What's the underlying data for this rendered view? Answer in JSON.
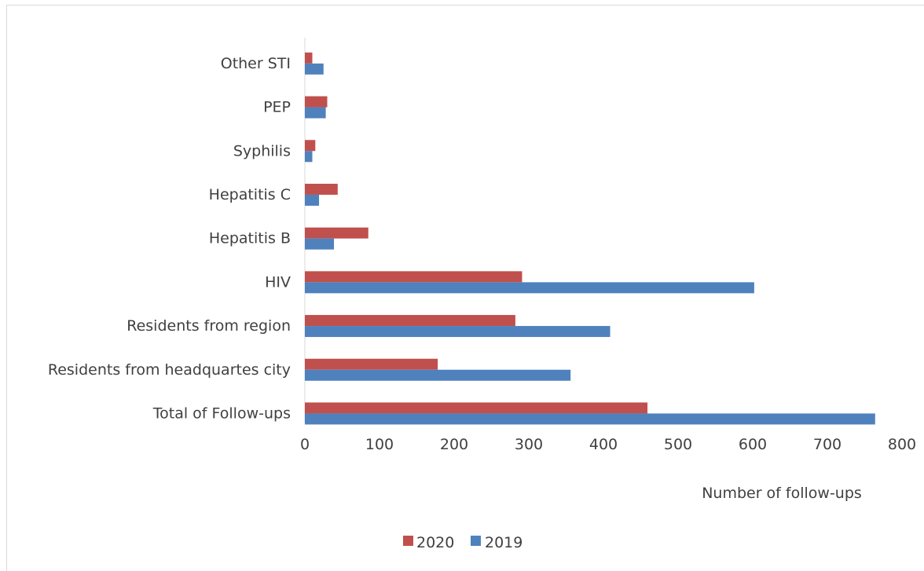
{
  "chart_data": {
    "type": "bar",
    "orientation": "horizontal",
    "categories": [
      "Total of Follow-ups",
      "Residents from headquartes city",
      "Residents from region",
      "HIV",
      "Hepatitis B",
      "Hepatitis C",
      "Syphilis",
      "PEP",
      "Other STI"
    ],
    "series": [
      {
        "name": "2020",
        "color": "#c0504d",
        "values": [
          459,
          178,
          282,
          291,
          85,
          44,
          14,
          30,
          10
        ]
      },
      {
        "name": "2019",
        "color": "#4f81bd",
        "values": [
          764,
          356,
          409,
          602,
          39,
          19,
          10,
          28,
          25
        ]
      }
    ],
    "xlabel": "Number of  follow-ups",
    "ylabel": "",
    "title": "",
    "xlim": [
      0,
      800
    ],
    "xticks": [
      "0",
      "100",
      "200",
      "300",
      "400",
      "500",
      "600",
      "700",
      "800"
    ],
    "grid": false,
    "legend": {
      "position": "bottom",
      "entries": [
        "2020",
        "2019"
      ]
    }
  }
}
